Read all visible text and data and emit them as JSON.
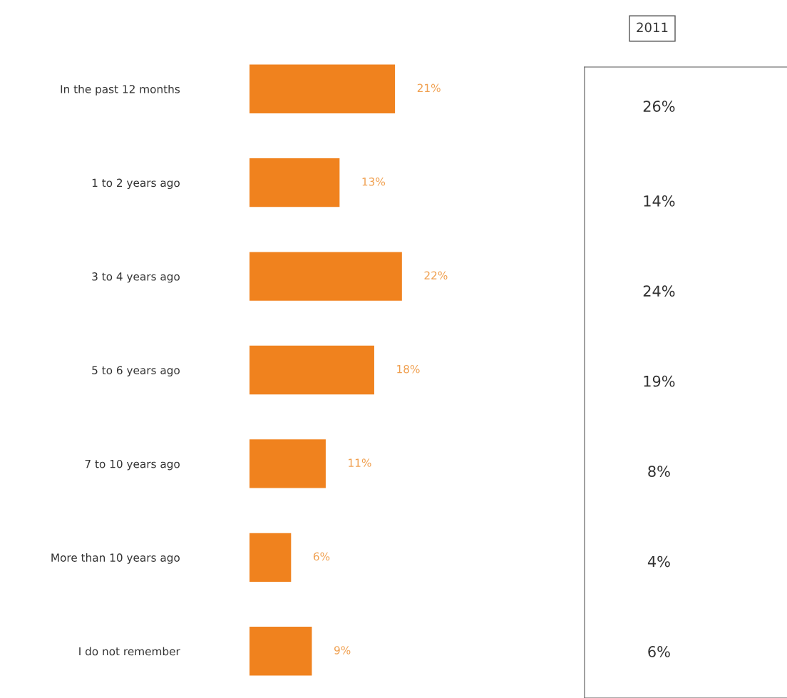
{
  "chart_data": [
    {
      "type": "bar",
      "orientation": "horizontal",
      "categories": [
        "In the past 12 months",
        "1 to 2 years ago",
        "3 to 4 years ago",
        "5 to 6 years ago",
        "7 to 10 years ago",
        "More than 10 years ago",
        "I do not remember"
      ],
      "values": [
        21,
        13,
        22,
        18,
        11,
        6,
        9
      ],
      "color": "#f0821e",
      "data_labels": true,
      "value_labels": [
        "21%",
        "13%",
        "22%",
        "18%",
        "11%",
        "6%",
        "9%"
      ],
      "tick_labels": "y",
      "grid": false,
      "legend": false
    },
    {
      "type": "other",
      "title": "2011",
      "categories": [
        null,
        null,
        null,
        null,
        null,
        null,
        null
      ],
      "values": [
        26,
        14,
        24,
        19,
        8,
        4,
        6
      ],
      "data_labels": true,
      "value_labels": [
        "26%",
        "14%",
        "24%",
        "19%",
        "8%",
        "4%",
        "6%"
      ]
    }
  ]
}
